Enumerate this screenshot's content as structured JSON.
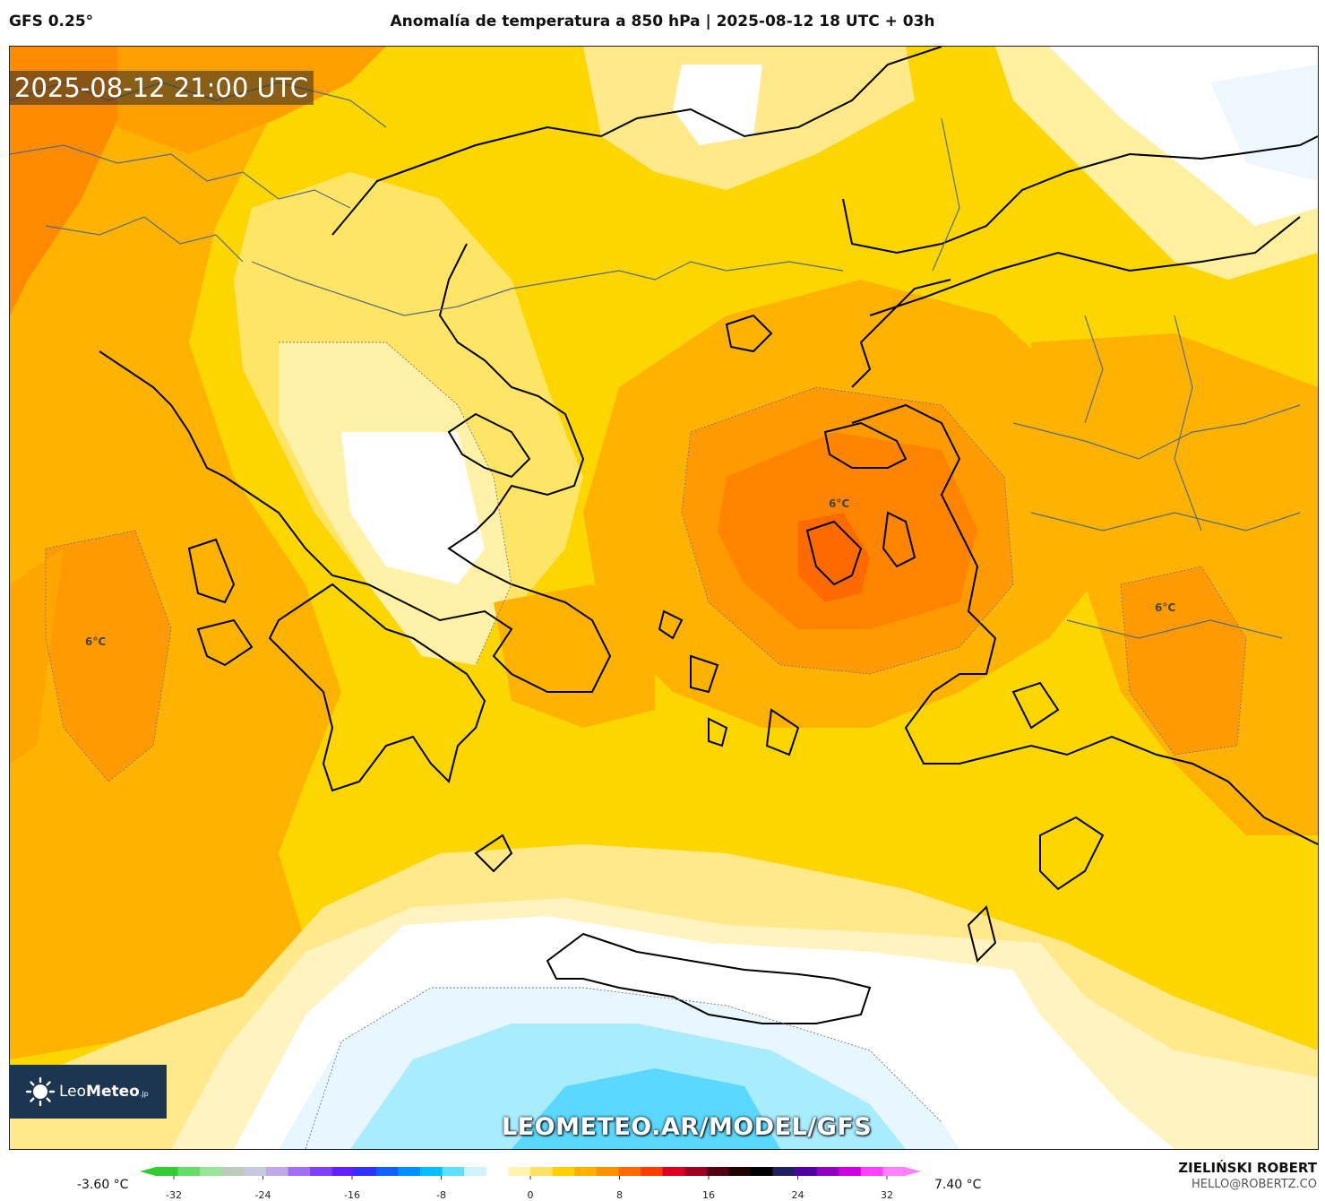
{
  "header": {
    "model": "GFS 0.25°",
    "title": "Anomalía de temperatura a 850 hPa | 2025-08-12 18 UTC + 03h"
  },
  "map": {
    "timestamp": "2025-08-12 21:00 UTC",
    "contour_labels": [
      "6°C",
      "6°C",
      "6°C"
    ],
    "watermark": "LEOMETEO.AR/MODEL/GFS"
  },
  "logo": {
    "name_light": "Leo",
    "name_bold": "Meteo",
    "suffix": ".jp"
  },
  "colorbar": {
    "min_label": "-3.60 °C",
    "max_label": "7.40 °C",
    "ticks": [
      "-32",
      "-24",
      "-16",
      "-8",
      "0",
      "8",
      "16",
      "24",
      "32"
    ],
    "colors": [
      "#33cc33",
      "#66dd66",
      "#99e699",
      "#bbccbb",
      "#c8c8e0",
      "#c0a8e8",
      "#a070f0",
      "#8040f8",
      "#6020ff",
      "#3030ff",
      "#1060ff",
      "#0090ff",
      "#00c0ff",
      "#60e0ff",
      "#d0f4ff",
      "#ffffff",
      "#fff3b0",
      "#ffe066",
      "#ffd000",
      "#ffb000",
      "#ff9000",
      "#ff6a00",
      "#ff3a00",
      "#e00020",
      "#a00020",
      "#500010",
      "#200000",
      "#000000",
      "#202060",
      "#5000a0",
      "#9000c0",
      "#d000e0",
      "#ff40ff",
      "#ff80ff"
    ]
  },
  "footer": {
    "author": "ZIELIŃSKI ROBERT",
    "email": "HELLO@ROBERTZ.CO"
  }
}
